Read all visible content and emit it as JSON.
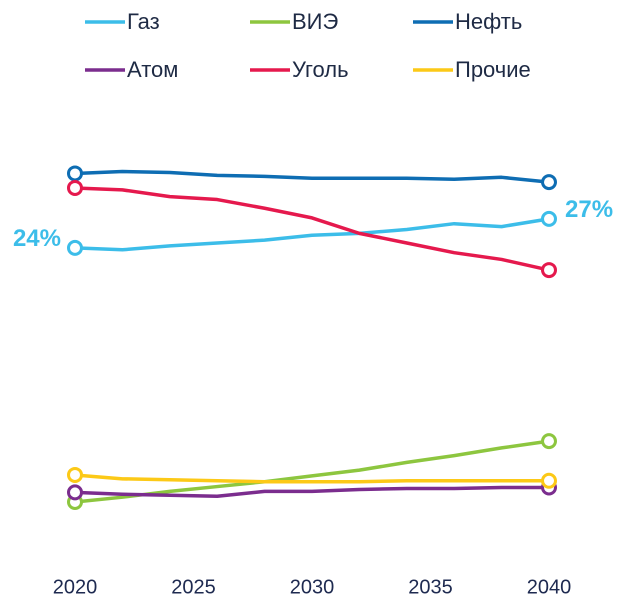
{
  "chart_data": {
    "type": "line",
    "x": [
      2020,
      2022,
      2024,
      2026,
      2028,
      2030,
      2032,
      2034,
      2036,
      2038,
      2040
    ],
    "xlim": [
      2020,
      2040
    ],
    "xticks": [
      2020,
      2025,
      2030,
      2035,
      2040
    ],
    "ylim": [
      -8.3,
      39.3
    ],
    "legend": "top",
    "series": [
      {
        "name": "Газ",
        "color": "#3cbde9",
        "values": [
          24.0,
          23.8,
          24.2,
          24.5,
          24.8,
          25.3,
          25.5,
          25.9,
          26.5,
          26.2,
          27.0
        ],
        "value_labels": [
          "24%",
          null,
          null,
          null,
          null,
          null,
          null,
          null,
          null,
          null,
          "27%"
        ]
      },
      {
        "name": "ВИЭ",
        "color": "#8dc63f",
        "values": [
          -2.3,
          -1.8,
          -1.2,
          -0.7,
          -0.2,
          0.4,
          1.0,
          1.8,
          2.5,
          3.3,
          4.0
        ]
      },
      {
        "name": "Нефть",
        "color": "#0e6db3",
        "values": [
          31.7,
          31.9,
          31.8,
          31.5,
          31.4,
          31.2,
          31.2,
          31.2,
          31.1,
          31.3,
          30.8
        ]
      },
      {
        "name": "Атом",
        "color": "#7b2d8e",
        "values": [
          -1.3,
          -1.5,
          -1.6,
          -1.7,
          -1.2,
          -1.2,
          -1.0,
          -0.9,
          -0.9,
          -0.8,
          -0.8
        ]
      },
      {
        "name": "Уголь",
        "color": "#e5194d",
        "values": [
          30.2,
          30.0,
          29.3,
          29.0,
          28.1,
          27.1,
          25.5,
          24.5,
          23.5,
          22.8,
          21.7
        ]
      },
      {
        "name": "Прочие",
        "color": "#fcc917",
        "values": [
          0.5,
          0.1,
          0.0,
          -0.1,
          -0.2,
          -0.2,
          -0.2,
          -0.1,
          -0.1,
          -0.1,
          -0.1
        ]
      }
    ]
  }
}
